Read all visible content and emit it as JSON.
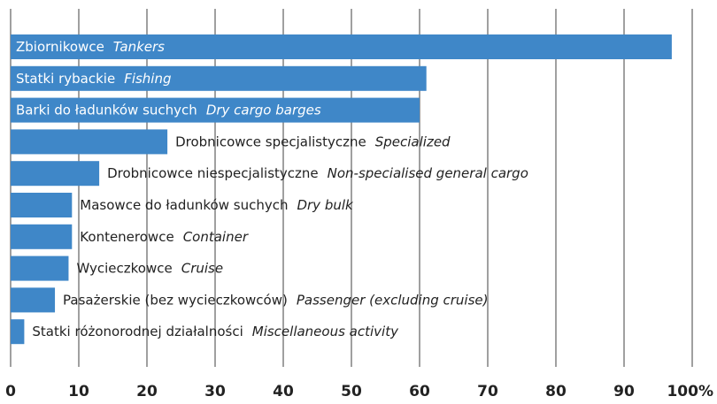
{
  "chart_data": {
    "type": "barh",
    "categories": [
      "Zbiornikowce",
      "Statki rybackie",
      "Barki do ładunków suchych",
      "Drobnicowce specjalistyczne",
      "Drobnicowce niespecjalistyczne",
      "Masowce do ładunków suchych",
      "Kontenerowce",
      "Wycieczkowce",
      "Pasażerskie (bez wycieczkowców)",
      "Statki różonorodnej działalności"
    ],
    "categories_english": [
      "Tankers",
      "Fishing",
      "Dry cargo barges",
      "Specialized",
      "Non-specialised general cargo",
      "Dry bulk",
      "Container",
      "Cruise",
      "Passenger (excluding cruise)",
      "Miscellaneous activity"
    ],
    "values": [
      97,
      61,
      60,
      23,
      13,
      9,
      9,
      8.5,
      6.5,
      2
    ],
    "color": "#3f87c8",
    "xlim": [
      0,
      100
    ],
    "xticks": [
      0,
      10,
      20,
      30,
      40,
      50,
      60,
      70,
      80,
      90,
      {
        "value": 100,
        "label": "100%"
      }
    ],
    "grid": true
  }
}
